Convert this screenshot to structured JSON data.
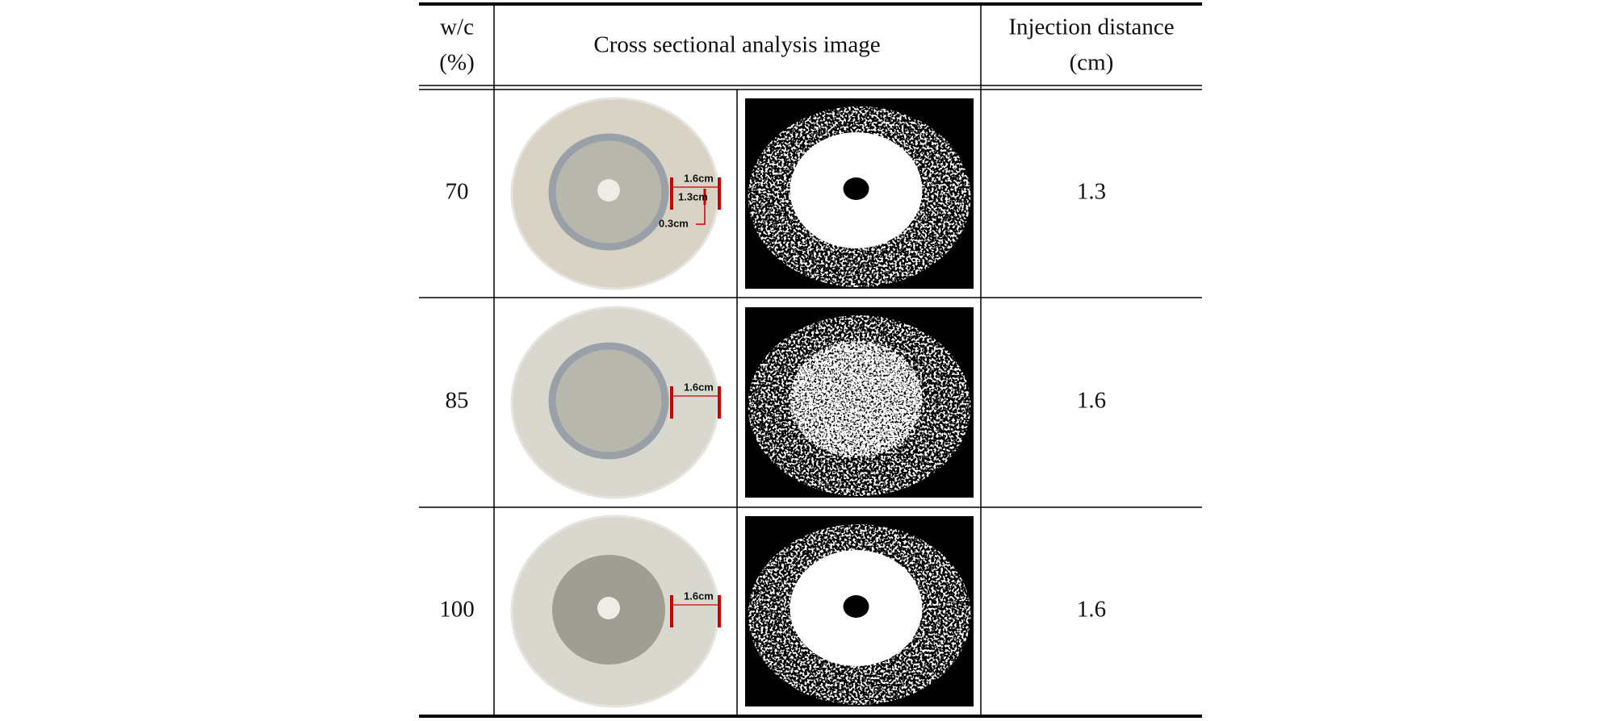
{
  "table": {
    "header": {
      "wc": [
        "w/c",
        "(%)"
      ],
      "image": "Cross sectional analysis image",
      "distance": [
        "Injection distance",
        "(cm)"
      ]
    },
    "rows": [
      {
        "wc": "70",
        "annotations": [
          "1.6cm",
          "1.3cm",
          "0.3cm"
        ],
        "distance": "1.3"
      },
      {
        "wc": "85",
        "annotations": [
          "1.6cm"
        ],
        "distance": "1.6"
      },
      {
        "wc": "100",
        "annotations": [
          "1.6cm"
        ],
        "distance": "1.6"
      }
    ]
  }
}
